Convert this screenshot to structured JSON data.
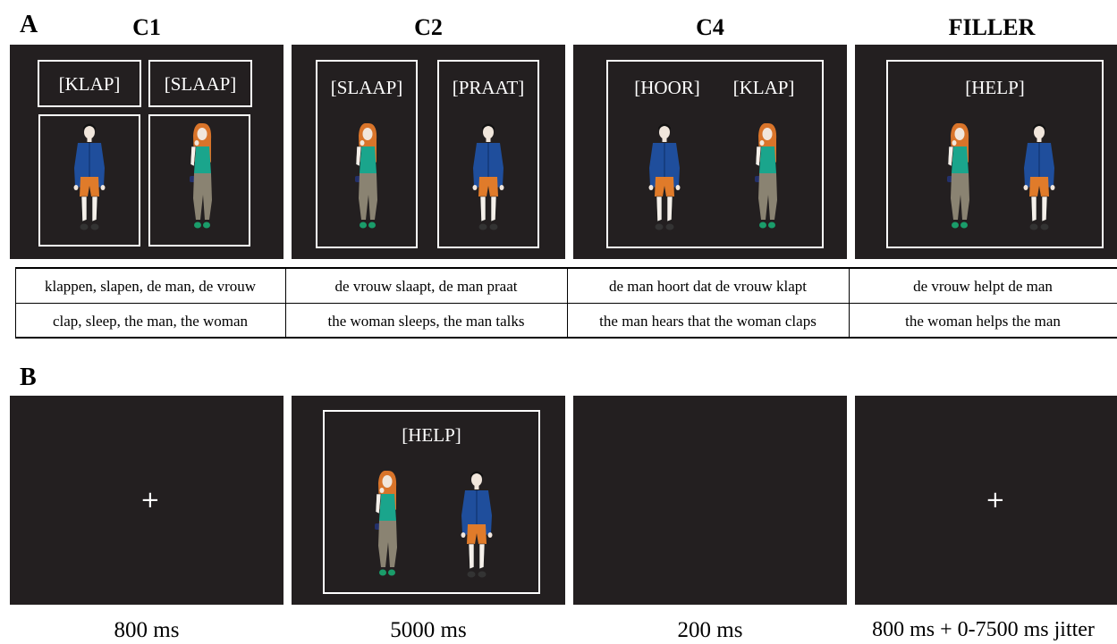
{
  "section_a_label": "A",
  "section_b_label": "B",
  "conditions": [
    {
      "title": "C1",
      "verbs": [
        "[KLAP]",
        "[SLAAP]"
      ],
      "dutch": "klappen, slapen, de man, de vrouw",
      "english": "clap, sleep, the man, the woman"
    },
    {
      "title": "C2",
      "verbs": [
        "[SLAAP]",
        "[PRAAT]"
      ],
      "dutch": "de vrouw slaapt, de man praat",
      "english": "the woman sleeps, the man talks"
    },
    {
      "title": "C4",
      "verbs": [
        "[HOOR]",
        "[KLAP]"
      ],
      "dutch": "de man hoort dat de vrouw klapt",
      "english": "the man hears that the woman claps"
    },
    {
      "title": "FILLER",
      "verbs": [
        "[HELP]"
      ],
      "dutch": "de vrouw helpt de man",
      "english": "the woman helps the man"
    }
  ],
  "trial_sequence": [
    {
      "screen": "fixation",
      "symbol": "+",
      "duration": "800 ms"
    },
    {
      "screen": "stimulus",
      "verb": "[HELP]",
      "duration": "5000 ms"
    },
    {
      "screen": "blank",
      "duration": "200 ms"
    },
    {
      "screen": "fixation",
      "symbol": "+",
      "duration": "800 ms + 0-7500 ms jitter"
    }
  ],
  "colors": {
    "panel": "#231f20",
    "man_shirt": "#1f4e9c",
    "man_shorts": "#e07b2a",
    "woman_hair": "#d9742a",
    "woman_top": "#1aa58c",
    "woman_pants": "#8a8372"
  }
}
